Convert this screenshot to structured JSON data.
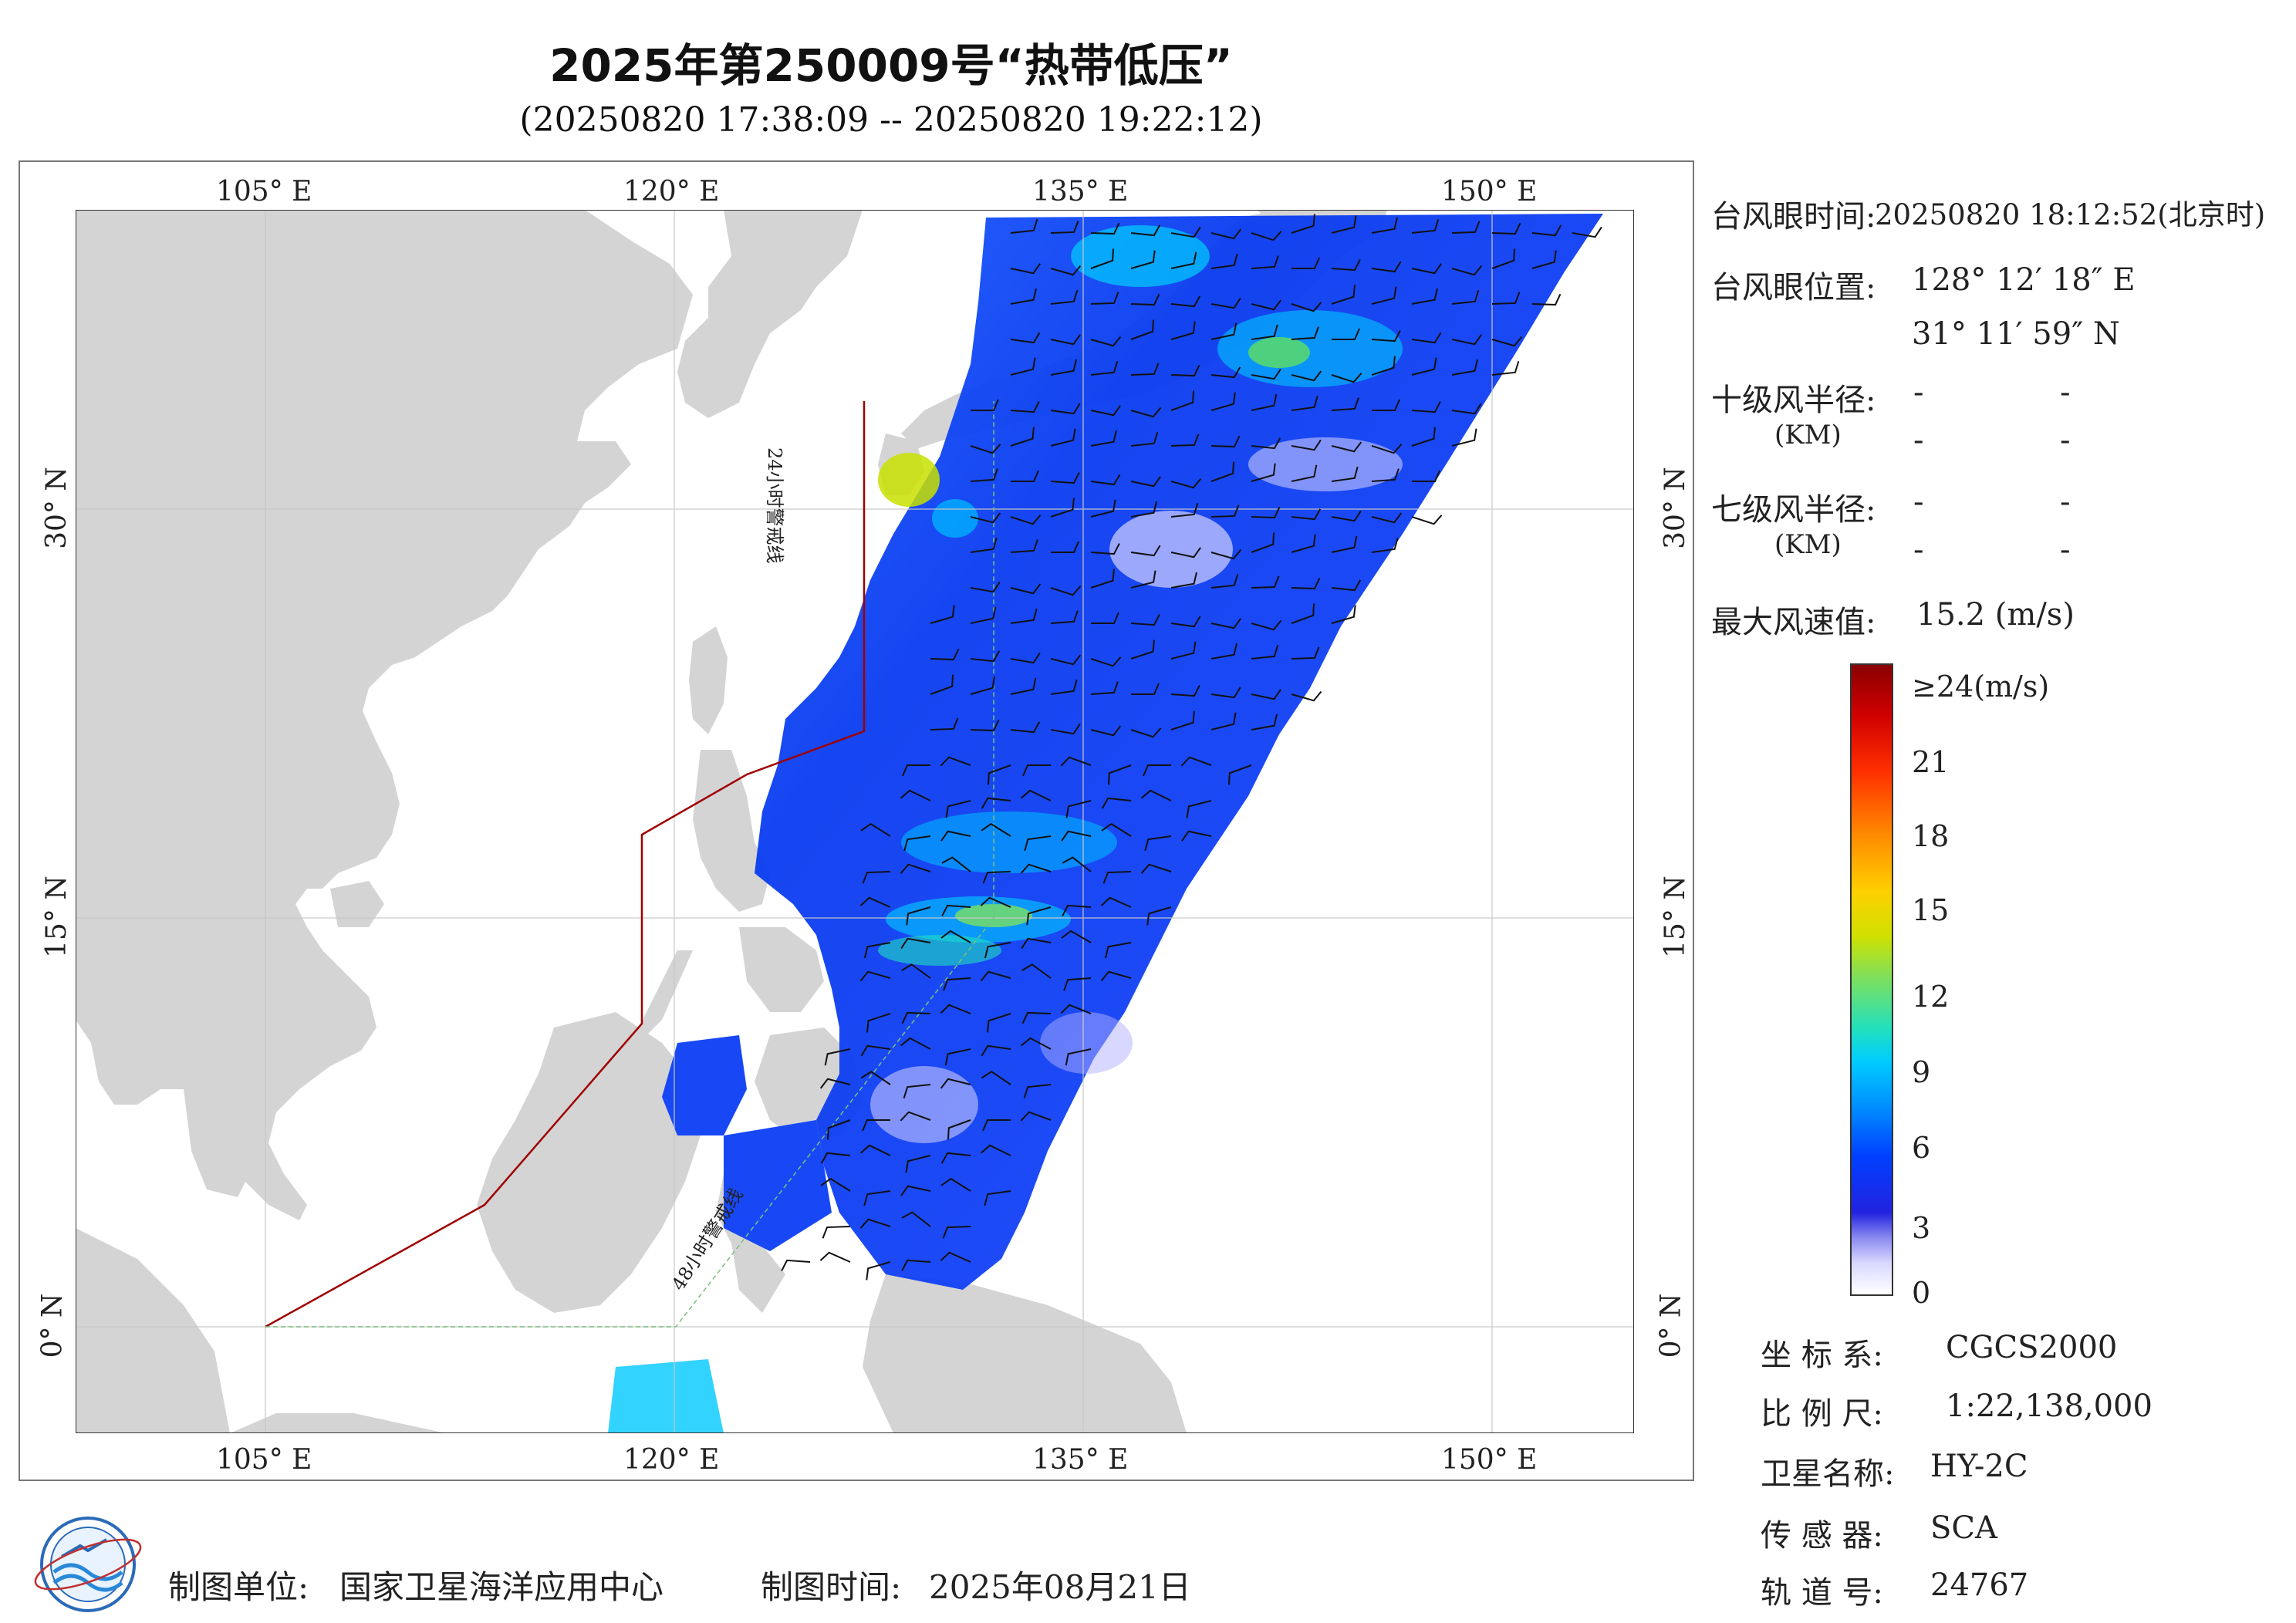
{
  "header": {
    "title": "2025年第250009号“热带低压”",
    "time_range": "(20250820 17:38:09 -- 20250820 19:22:12)"
  },
  "map": {
    "lon_labels": [
      "105° E",
      "120° E",
      "135° E",
      "150° E"
    ],
    "lat_labels": [
      "30° N",
      "15° N",
      "0° N"
    ],
    "warning_line_24h": "24小时警戒线",
    "warning_line_48h": "48小时警戒线",
    "colors": {
      "land": "#d4d4d4",
      "sea": "#ffffff",
      "warning_line": "#a00000",
      "grid": "#c8c8c8"
    }
  },
  "info": {
    "eye_time_label": "台风眼时间:",
    "eye_time_value": "20250820 18:12:52(北京时)",
    "eye_position_label": "台风眼位置:",
    "eye_lon": "128° 12′ 18″ E",
    "eye_lat": "31° 11′ 59″ N",
    "r10_label": "十级风半径:",
    "r10_unit": "(KM)",
    "r7_label": "七级风半径:",
    "r7_unit": "(KM)",
    "dash": "-",
    "max_wind_label": "最大风速值:",
    "max_wind_value": "15.2 (m/s)"
  },
  "colorbar": {
    "ticks": [
      "≥24(m/s)",
      "21",
      "18",
      "15",
      "12",
      "9",
      "6",
      "3",
      "0"
    ],
    "tick_values": [
      24,
      21,
      18,
      15,
      12,
      9,
      6,
      3,
      0
    ]
  },
  "meta": {
    "crs_label": "坐 标 系:",
    "crs_value": "CGCS2000",
    "scale_label": "比 例 尺:",
    "scale_value": "1:22,138,000",
    "satellite_label": "卫星名称:",
    "satellite_value": "HY-2C",
    "sensor_label": "传 感 器:",
    "sensor_value": "SCA",
    "orbit_label": "轨 道 号:",
    "orbit_value": "24767"
  },
  "footer": {
    "unit_label": "制图单位:",
    "unit_value": "国家卫星海洋应用中心",
    "date_label": "制图时间:",
    "date_value": "2025年08月21日"
  }
}
